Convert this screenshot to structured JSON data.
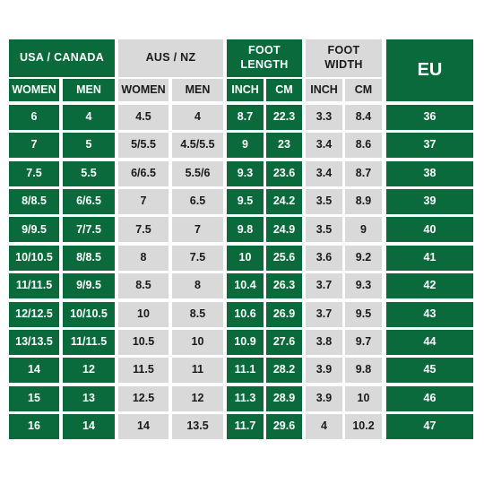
{
  "colors": {
    "green": "#0b6a3c",
    "grey": "#d9d9d9",
    "white_text": "#ffffff",
    "dark_text": "#1a1a1a"
  },
  "groups": {
    "usa_canada": "USA / CANADA",
    "aus_nz": "AUS / NZ",
    "foot_length": "FOOT\nLENGTH",
    "foot_width": "FOOT\nWIDTH",
    "eu": "EU"
  },
  "subheaders": {
    "usa_women": "WOMEN",
    "usa_men": "MEN",
    "aus_women": "WOMEN",
    "aus_men": "MEN",
    "length_inch": "INCH",
    "length_cm": "CM",
    "width_inch": "INCH",
    "width_cm": "CM"
  },
  "rows": [
    [
      "6",
      "4",
      "4.5",
      "4",
      "8.7",
      "22.3",
      "3.3",
      "8.4",
      "36"
    ],
    [
      "7",
      "5",
      "5/5.5",
      "4.5/5.5",
      "9",
      "23",
      "3.4",
      "8.6",
      "37"
    ],
    [
      "7.5",
      "5.5",
      "6/6.5",
      "5.5/6",
      "9.3",
      "23.6",
      "3.4",
      "8.7",
      "38"
    ],
    [
      "8/8.5",
      "6/6.5",
      "7",
      "6.5",
      "9.5",
      "24.2",
      "3.5",
      "8.9",
      "39"
    ],
    [
      "9/9.5",
      "7/7.5",
      "7.5",
      "7",
      "9.8",
      "24.9",
      "3.5",
      "9",
      "40"
    ],
    [
      "10/10.5",
      "8/8.5",
      "8",
      "7.5",
      "10",
      "25.6",
      "3.6",
      "9.2",
      "41"
    ],
    [
      "11/11.5",
      "9/9.5",
      "8.5",
      "8",
      "10.4",
      "26.3",
      "3.7",
      "9.3",
      "42"
    ],
    [
      "12/12.5",
      "10/10.5",
      "10",
      "8.5",
      "10.6",
      "26.9",
      "3.7",
      "9.5",
      "43"
    ],
    [
      "13/13.5",
      "11/11.5",
      "10.5",
      "10",
      "10.9",
      "27.6",
      "3.8",
      "9.7",
      "44"
    ],
    [
      "14",
      "12",
      "11.5",
      "11",
      "11.1",
      "28.2",
      "3.9",
      "9.8",
      "45"
    ],
    [
      "15",
      "13",
      "12.5",
      "12",
      "11.3",
      "28.9",
      "3.9",
      "10",
      "46"
    ],
    [
      "16",
      "14",
      "14",
      "13.5",
      "11.7",
      "29.6",
      "4",
      "10.2",
      "47"
    ]
  ]
}
